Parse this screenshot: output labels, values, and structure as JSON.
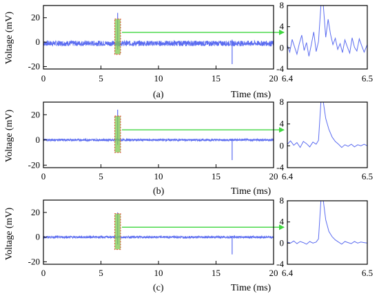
{
  "figure": {
    "ylabel": "Voltage (mV)",
    "xlabel": "Time (ms)",
    "colors": {
      "trace": "#5b6cf0",
      "highlight": "#7ec850",
      "highlight_border": "#e0523a",
      "arrow": "#3fd63f"
    }
  },
  "chart_data": [
    {
      "type": "line",
      "panel_label": "(a)",
      "noise_mV": 2.2,
      "xlabel": "Time (ms)",
      "ylabel": "Voltage (mV)",
      "xlim": [
        0,
        20
      ],
      "ylim": [
        -22,
        30
      ],
      "xticks": [
        0,
        5,
        10,
        15,
        20
      ],
      "yticks": [
        -20,
        0,
        20
      ],
      "events": [
        {
          "t_ms": 6.45,
          "peak_mV": 24,
          "min_mV": -6
        },
        {
          "t_ms": 16.4,
          "peak_mV": 2,
          "min_mV": -18
        }
      ],
      "highlight_window_ms": [
        6.2,
        6.7
      ],
      "inset": {
        "xlim": [
          6.4,
          6.5
        ],
        "ylim": [
          -4,
          8
        ],
        "xticks": [
          6.4,
          6.5
        ],
        "yticks": [
          -4,
          0,
          4,
          8
        ],
        "points": [
          [
            6.4,
            0.5
          ],
          [
            6.403,
            -0.8
          ],
          [
            6.406,
            1.6
          ],
          [
            6.409,
            0.2
          ],
          [
            6.412,
            -1.2
          ],
          [
            6.415,
            0.8
          ],
          [
            6.418,
            2.4
          ],
          [
            6.421,
            -0.5
          ],
          [
            6.424,
            1.0
          ],
          [
            6.427,
            -1.6
          ],
          [
            6.43,
            0.6
          ],
          [
            6.433,
            3.0
          ],
          [
            6.436,
            -0.7
          ],
          [
            6.439,
            1.2
          ],
          [
            6.442,
            8
          ],
          [
            6.445,
            8
          ],
          [
            6.448,
            2.0
          ],
          [
            6.451,
            5.4
          ],
          [
            6.454,
            2.6
          ],
          [
            6.457,
            0.6
          ],
          [
            6.46,
            1.8
          ],
          [
            6.463,
            -0.3
          ],
          [
            6.466,
            0.8
          ],
          [
            6.469,
            -0.9
          ],
          [
            6.472,
            1.5
          ],
          [
            6.475,
            0.2
          ],
          [
            6.478,
            -1.0
          ],
          [
            6.481,
            1.9
          ],
          [
            6.484,
            0.1
          ],
          [
            6.487,
            -0.6
          ],
          [
            6.49,
            1.7
          ],
          [
            6.493,
            0.4
          ],
          [
            6.496,
            -0.8
          ],
          [
            6.5,
            0.6
          ]
        ]
      }
    },
    {
      "type": "line",
      "panel_label": "(b)",
      "noise_mV": 0.9,
      "xlabel": "Time (ms)",
      "ylabel": "Voltage (mV)",
      "xlim": [
        0,
        20
      ],
      "ylim": [
        -22,
        30
      ],
      "xticks": [
        0,
        5,
        10,
        15,
        20
      ],
      "yticks": [
        -20,
        0,
        20
      ],
      "events": [
        {
          "t_ms": 6.45,
          "peak_mV": 24,
          "min_mV": -4
        },
        {
          "t_ms": 16.4,
          "peak_mV": 1,
          "min_mV": -16
        }
      ],
      "highlight_window_ms": [
        6.2,
        6.7
      ],
      "inset": {
        "xlim": [
          6.4,
          6.5
        ],
        "ylim": [
          -4,
          8
        ],
        "xticks": [
          6.4,
          6.5
        ],
        "yticks": [
          -4,
          0,
          4,
          8
        ],
        "points": [
          [
            6.4,
            0.3
          ],
          [
            6.404,
            0.9
          ],
          [
            6.408,
            0.1
          ],
          [
            6.412,
            0.6
          ],
          [
            6.416,
            -0.3
          ],
          [
            6.42,
            0.8
          ],
          [
            6.424,
            0.4
          ],
          [
            6.428,
            -0.2
          ],
          [
            6.432,
            0.7
          ],
          [
            6.436,
            0.3
          ],
          [
            6.439,
            1.0
          ],
          [
            6.442,
            8
          ],
          [
            6.445,
            8
          ],
          [
            6.448,
            5.0
          ],
          [
            6.452,
            3.0
          ],
          [
            6.456,
            1.6
          ],
          [
            6.46,
            0.8
          ],
          [
            6.464,
            0.3
          ],
          [
            6.468,
            -0.3
          ],
          [
            6.472,
            0.2
          ],
          [
            6.476,
            -0.1
          ],
          [
            6.48,
            0.3
          ],
          [
            6.484,
            -0.2
          ],
          [
            6.488,
            0.2
          ],
          [
            6.492,
            0.0
          ],
          [
            6.496,
            0.3
          ],
          [
            6.5,
            0.0
          ]
        ]
      }
    },
    {
      "type": "line",
      "panel_label": "(c)",
      "noise_mV": 0.9,
      "xlabel": "Time (ms)",
      "ylabel": "Voltage (mV)",
      "xlim": [
        0,
        20
      ],
      "ylim": [
        -22,
        30
      ],
      "xticks": [
        0,
        5,
        10,
        15,
        20
      ],
      "yticks": [
        -20,
        0,
        20
      ],
      "events": [
        {
          "t_ms": 6.45,
          "peak_mV": 20,
          "min_mV": -6
        },
        {
          "t_ms": 16.4,
          "peak_mV": 1,
          "min_mV": -14
        }
      ],
      "highlight_window_ms": [
        6.2,
        6.7
      ],
      "inset": {
        "xlim": [
          6.4,
          6.5
        ],
        "ylim": [
          -4,
          8
        ],
        "xticks": [
          6.4,
          6.5
        ],
        "yticks": [
          -4,
          0,
          4,
          8
        ],
        "points": [
          [
            6.4,
            0.2
          ],
          [
            6.404,
            0.0
          ],
          [
            6.408,
            0.4
          ],
          [
            6.412,
            -0.1
          ],
          [
            6.416,
            0.3
          ],
          [
            6.42,
            0.1
          ],
          [
            6.424,
            -0.2
          ],
          [
            6.428,
            0.3
          ],
          [
            6.432,
            0.0
          ],
          [
            6.436,
            0.2
          ],
          [
            6.439,
            0.8
          ],
          [
            6.442,
            8
          ],
          [
            6.445,
            8
          ],
          [
            6.448,
            4.4
          ],
          [
            6.452,
            2.2
          ],
          [
            6.456,
            1.2
          ],
          [
            6.46,
            0.6
          ],
          [
            6.464,
            0.2
          ],
          [
            6.468,
            -0.2
          ],
          [
            6.472,
            0.3
          ],
          [
            6.476,
            0.1
          ],
          [
            6.48,
            -0.1
          ],
          [
            6.484,
            0.3
          ],
          [
            6.488,
            0.0
          ],
          [
            6.492,
            0.2
          ],
          [
            6.496,
            0.1
          ],
          [
            6.5,
            0.0
          ]
        ]
      }
    }
  ]
}
